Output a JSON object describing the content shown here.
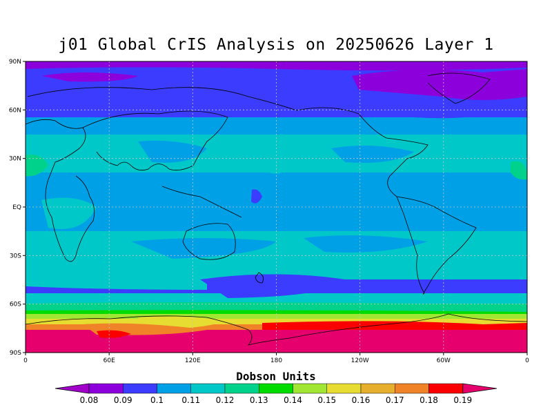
{
  "title": "j01 Global CrIS Analysis on 20250626 Layer 1",
  "map": {
    "projection": "equirectangular",
    "lat_labels": [
      "90N",
      "60N",
      "30N",
      "EQ",
      "30S",
      "60S",
      "90S"
    ],
    "lon_labels": [
      "0",
      "60E",
      "120E",
      "180",
      "120W",
      "60W",
      "0"
    ],
    "grid": true,
    "coastlines": true
  },
  "colorbar": {
    "title": "Dobson Units",
    "levels": [
      "0.08",
      "0.09",
      "0.1",
      "0.11",
      "0.12",
      "0.13",
      "0.14",
      "0.15",
      "0.16",
      "0.17",
      "0.18",
      "0.19"
    ],
    "colors": [
      "#a000c8",
      "#8c00dc",
      "#3c3cff",
      "#00a0e6",
      "#00c8c8",
      "#00d28c",
      "#00dc00",
      "#a0e632",
      "#e6dc32",
      "#e6af2d",
      "#f08228",
      "#fa0000",
      "#e6006e"
    ]
  },
  "chart_data": {
    "type": "heatmap",
    "title": "j01 Global CrIS Analysis on 20250626 Layer 1",
    "units": "Dobson Units",
    "x_ticks": [
      "0",
      "60E",
      "120E",
      "180",
      "120W",
      "60W",
      "0"
    ],
    "y_ticks": [
      "90N",
      "60N",
      "30N",
      "EQ",
      "30S",
      "60S",
      "90S"
    ],
    "latitude_bands": [
      {
        "lat_range": [
          90,
          75
        ],
        "value": 0.085
      },
      {
        "lat_range": [
          75,
          60
        ],
        "value": 0.09
      },
      {
        "lat_range": [
          60,
          40
        ],
        "value": 0.105
      },
      {
        "lat_range": [
          40,
          20
        ],
        "value": 0.115
      },
      {
        "lat_range": [
          20,
          -20
        ],
        "value": 0.105
      },
      {
        "lat_range": [
          -20,
          -45
        ],
        "value": 0.115
      },
      {
        "lat_range": [
          -45,
          -55
        ],
        "value": 0.095
      },
      {
        "lat_range": [
          -55,
          -60
        ],
        "value": 0.115
      },
      {
        "lat_range": [
          -60,
          -65
        ],
        "value": 0.13
      },
      {
        "lat_range": [
          -65,
          -70
        ],
        "value": 0.15
      },
      {
        "lat_range": [
          -70,
          -75
        ],
        "value": 0.175
      },
      {
        "lat_range": [
          -75,
          -90
        ],
        "value": 0.19
      }
    ]
  }
}
